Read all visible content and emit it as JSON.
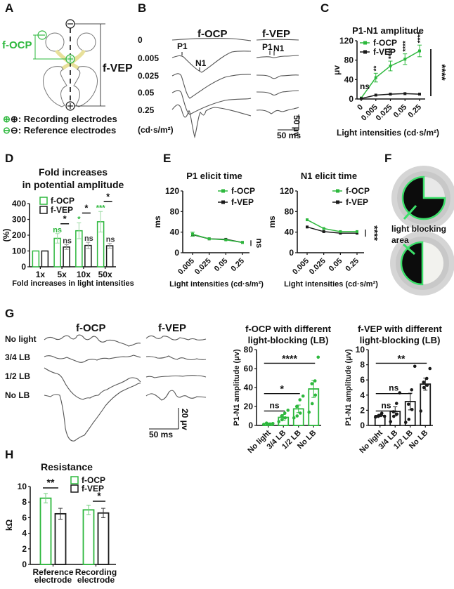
{
  "colors": {
    "green": "#2db83d",
    "black": "#1a1a1a",
    "trace": "#555555",
    "grey": "#888888"
  },
  "panels": {
    "A": {
      "label": "A",
      "focp_label": "f-OCP",
      "fvep_label": "f-VEP",
      "legend": [
        {
          "icon": "recording-electrode-icon",
          "text": ": Recording electrodes"
        },
        {
          "icon": "reference-electrode-icon",
          "text": ": Reference electrodes"
        }
      ]
    },
    "B": {
      "label": "B",
      "focp_title": "f-OCP",
      "fvep_title": "f-VEP",
      "intensities": [
        "0",
        "0.005",
        "0.025",
        "0.05",
        "0.25"
      ],
      "unit": "(cd·s/m²)",
      "p1": "P1",
      "n1": "N1",
      "scale_y": "50 μv",
      "scale_x": "50 ms"
    },
    "C": {
      "label": "C"
    },
    "D": {
      "label": "D"
    },
    "E": {
      "label": "E"
    },
    "F": {
      "label": "F",
      "annotation_line1": "light blocking",
      "annotation_line2": "area"
    },
    "G": {
      "label": "G",
      "focp_title": "f-OCP",
      "fvep_title": "f-VEP",
      "conditions": [
        "No light",
        "3/4 LB",
        "1/2 LB",
        "No LB"
      ],
      "scale_y": "20 μv",
      "scale_x": "50 ms"
    },
    "H": {
      "label": "H"
    }
  },
  "chart_data": [
    {
      "id": "C",
      "type": "line",
      "title": "P1-N1 amplitude",
      "xlabel": "Light intensities (cd·s/m²)",
      "ylabel": "μv",
      "categories": [
        "0",
        "0.005",
        "0.025",
        "0.05",
        "0.25"
      ],
      "ylim": [
        0,
        120
      ],
      "yticks": [
        0,
        40,
        80,
        120
      ],
      "legend_position": "top-left",
      "series": [
        {
          "name": "f-OCP",
          "color": "green",
          "values": [
            2,
            44,
            68,
            82,
            99
          ],
          "errors": [
            1,
            9,
            10,
            11,
            12
          ]
        },
        {
          "name": "f-VEP",
          "color": "black",
          "values": [
            1,
            8,
            10,
            11,
            10
          ],
          "errors": [
            0.5,
            1,
            1,
            1,
            1
          ]
        }
      ],
      "annotations": [
        {
          "category": "0",
          "text": "ns"
        },
        {
          "category": "0.005",
          "text": "**"
        },
        {
          "category": "0.025",
          "text": "****"
        },
        {
          "category": "0.05",
          "text": "****"
        },
        {
          "category": "0.25",
          "text": "****"
        }
      ],
      "overall_significance": "****"
    },
    {
      "id": "D",
      "type": "bar",
      "title": "Fold increases in potential amplitude",
      "title_lines": [
        "Fold increases",
        "in potential amplitude"
      ],
      "xlabel": "Fold increases in light intensities",
      "ylabel": "(%)",
      "categories": [
        "1x",
        "5x",
        "10x",
        "50x"
      ],
      "ylim": [
        0,
        400
      ],
      "yticks": [
        0,
        100,
        200,
        300,
        400
      ],
      "legend_position": "top-left",
      "series": [
        {
          "name": "f-OCP",
          "color": "green",
          "values": [
            100,
            180,
            228,
            285
          ],
          "errors": [
            0,
            30,
            50,
            65
          ]
        },
        {
          "name": "f-VEP",
          "color": "black",
          "values": [
            100,
            125,
            135,
            133
          ],
          "errors": [
            0,
            15,
            20,
            15
          ]
        }
      ],
      "focp_annotations": [
        "",
        "ns",
        "*",
        "***"
      ],
      "fvep_annotations": [
        "",
        "ns",
        "ns",
        "ns"
      ],
      "pair_annotations": [
        "",
        "*",
        "*",
        "*"
      ]
    },
    {
      "id": "E1",
      "type": "line",
      "title": "P1 elicit time",
      "xlabel": "Light intensities (cd·s/m²)",
      "ylabel": "ms",
      "categories": [
        "0.005",
        "0.025",
        "0.05",
        "0.25"
      ],
      "ylim": [
        0,
        120
      ],
      "yticks": [
        0,
        40,
        80,
        120
      ],
      "legend_position": "top-right",
      "series": [
        {
          "name": "f-OCP",
          "color": "green",
          "values": [
            36,
            27,
            25,
            20
          ],
          "errors": [
            4,
            1,
            1,
            1
          ]
        },
        {
          "name": "f-VEP",
          "color": "black",
          "values": [
            35,
            27,
            26,
            20
          ],
          "errors": [
            1,
            1,
            1,
            1
          ]
        }
      ],
      "overall_significance": "ns"
    },
    {
      "id": "E2",
      "type": "line",
      "title": "N1 elicit time",
      "xlabel": "Light intensities (cd·s/m²)",
      "ylabel": "ms",
      "categories": [
        "0.005",
        "0.025",
        "0.05",
        "0.25"
      ],
      "ylim": [
        0,
        120
      ],
      "yticks": [
        0,
        40,
        80,
        120
      ],
      "legend_position": "top-right",
      "series": [
        {
          "name": "f-OCP",
          "color": "green",
          "values": [
            64,
            47,
            41,
            41
          ],
          "errors": [
            1,
            1,
            1,
            1
          ]
        },
        {
          "name": "f-VEP",
          "color": "black",
          "values": [
            50,
            41,
            38,
            38
          ],
          "errors": [
            1,
            1,
            1,
            1
          ]
        }
      ],
      "overall_significance": "****"
    },
    {
      "id": "G1",
      "type": "bar",
      "title": "f-OCP with different light-blocking (LB)",
      "title_lines": [
        "f-OCP with different",
        "light-blocking (LB)"
      ],
      "xlabel": "",
      "ylabel": "P1-N1 amplitude (μv)",
      "categories": [
        "No light",
        "3/4 LB",
        "1/2 LB",
        "No LB"
      ],
      "ylim": [
        0,
        80
      ],
      "yticks": [
        0,
        20,
        40,
        60,
        80
      ],
      "color": "green",
      "values": [
        2,
        8.5,
        17.5,
        38.5
      ],
      "errors": [
        0.5,
        3,
        4,
        9
      ],
      "points": [
        [
          1,
          2,
          1.5,
          2.5,
          1,
          2
        ],
        [
          4,
          6,
          8,
          10,
          13,
          16
        ],
        [
          8,
          10,
          13,
          20,
          27,
          31
        ],
        [
          14,
          23,
          32,
          44,
          47,
          72
        ]
      ],
      "comparisons": [
        {
          "from": "No light",
          "to": "3/4 LB",
          "text": "ns"
        },
        {
          "from": "No light",
          "to": "1/2 LB",
          "text": "*"
        },
        {
          "from": "No light",
          "to": "No LB",
          "text": "****"
        }
      ]
    },
    {
      "id": "G2",
      "type": "bar",
      "title": "f-VEP with different light-blocking (LB)",
      "title_lines": [
        "f-VEP with different",
        "light-blocking (LB)"
      ],
      "xlabel": "",
      "ylabel": "P1-N1 amplitude (μv)",
      "categories": [
        "No light",
        "3/4 LB",
        "1/2 LB",
        "No LB"
      ],
      "ylim": [
        0,
        10
      ],
      "yticks": [
        0,
        2,
        4,
        6,
        8,
        10
      ],
      "color": "black",
      "values": [
        1.3,
        1.85,
        3.15,
        5.45
      ],
      "errors": [
        0.15,
        0.6,
        1.1,
        0.8
      ],
      "points": [
        [
          1.1,
          1.3,
          1.6,
          1.2,
          1.5,
          1.2
        ],
        [
          0.5,
          1.2,
          1.5,
          1.8,
          2.9,
          4.3
        ],
        [
          0.4,
          0.8,
          2.1,
          2.8,
          4.7,
          7.8
        ],
        [
          1.9,
          5.0,
          5.3,
          5.7,
          6.2,
          7.5
        ]
      ],
      "comparisons": [
        {
          "from": "No light",
          "to": "3/4 LB",
          "text": "ns"
        },
        {
          "from": "No light",
          "to": "1/2 LB",
          "text": "ns"
        },
        {
          "from": "No light",
          "to": "No LB",
          "text": "**"
        }
      ]
    },
    {
      "id": "H",
      "type": "bar",
      "title": "Resistance",
      "xlabel": "",
      "ylabel": "kΩ",
      "categories": [
        "Reference electrode",
        "Recording electrode"
      ],
      "category_lines": [
        [
          "Reference",
          "electrode"
        ],
        [
          "Recording",
          "electrode"
        ]
      ],
      "ylim": [
        0,
        10
      ],
      "yticks": [
        0,
        2,
        4,
        6,
        8,
        10
      ],
      "legend_position": "top-right",
      "series": [
        {
          "name": "f-OCP",
          "color": "green",
          "values": [
            8.5,
            7.0
          ],
          "errors": [
            0.6,
            0.6
          ]
        },
        {
          "name": "f-VEP",
          "color": "black",
          "values": [
            6.5,
            6.6
          ],
          "errors": [
            0.7,
            0.6
          ]
        }
      ],
      "pair_annotations": [
        "**",
        "*"
      ]
    }
  ]
}
